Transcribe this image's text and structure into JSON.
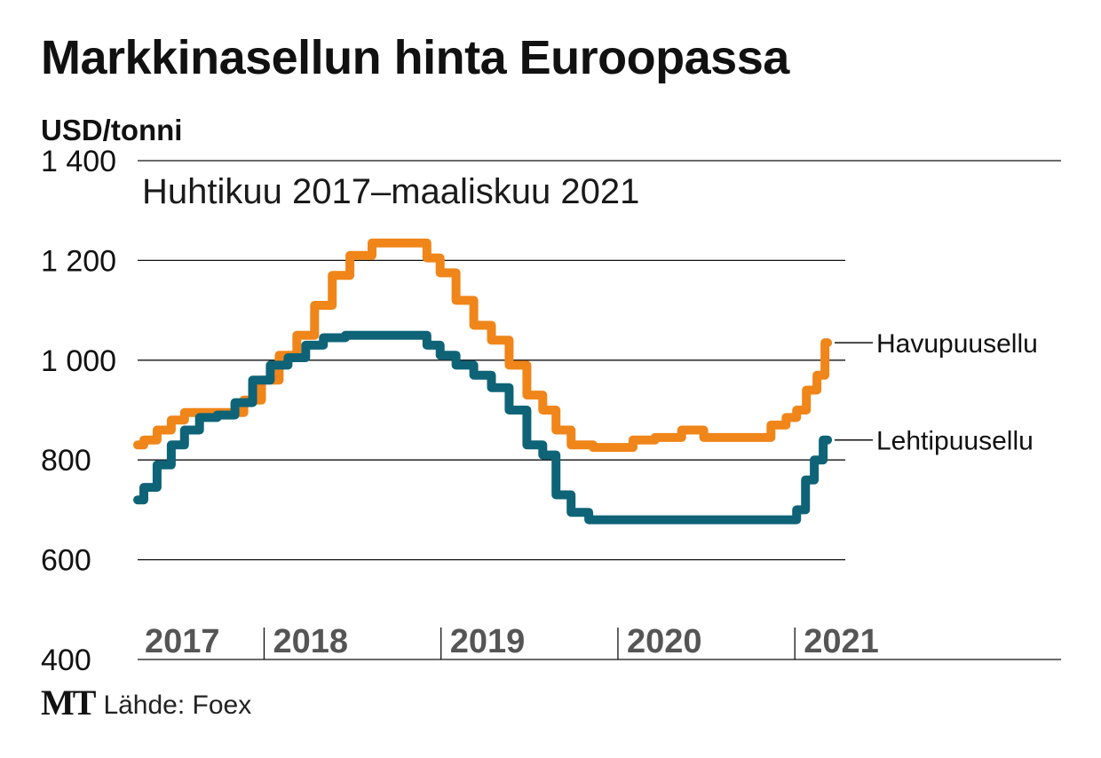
{
  "chart_data": {
    "type": "line",
    "title": "Markkinasellun hinta Euroopassa",
    "subtitle": "Huhtikuu 2017–maaliskuu 2021",
    "ylabel": "USD/tonni",
    "ylim": [
      400,
      1400
    ],
    "yticks": [
      400,
      600,
      800,
      1000,
      1200,
      1400
    ],
    "ytick_labels": [
      "400",
      "600",
      "800",
      "1 000",
      "1 200",
      "1 400"
    ],
    "xlim": [
      2017.25,
      2021.25
    ],
    "year_labels": [
      "2017",
      "2018",
      "2019",
      "2020",
      "2021"
    ],
    "year_label_positions": [
      2017.25,
      2018.0,
      2019.0,
      2020.0,
      2021.0
    ],
    "year_dividers": [
      2018.0,
      2019.0,
      2020.0,
      2021.0
    ],
    "grid": true,
    "colors": {
      "Havupuusellu": "#f08519",
      "Lehtipuusellu": "#0e6377"
    },
    "series": [
      {
        "name": "Havupuusellu",
        "x": [
          2017.25,
          2017.32,
          2017.4,
          2017.48,
          2017.55,
          2017.65,
          2017.8,
          2017.9,
          2018.0,
          2018.1,
          2018.2,
          2018.3,
          2018.4,
          2018.5,
          2018.65,
          2018.75,
          2018.85,
          2018.92,
          2019.0,
          2019.1,
          2019.2,
          2019.3,
          2019.4,
          2019.5,
          2019.58,
          2019.65,
          2019.75,
          2019.9,
          2020.0,
          2020.1,
          2020.25,
          2020.4,
          2020.5,
          2020.65,
          2020.78,
          2020.88,
          2020.95,
          2021.0,
          2021.06,
          2021.12,
          2021.15
        ],
        "y": [
          830,
          840,
          860,
          880,
          895,
          895,
          895,
          920,
          960,
          1010,
          1050,
          1110,
          1170,
          1210,
          1235,
          1235,
          1235,
          1205,
          1175,
          1120,
          1070,
          1040,
          990,
          930,
          900,
          860,
          830,
          825,
          825,
          840,
          845,
          860,
          845,
          845,
          845,
          870,
          885,
          900,
          940,
          970,
          1035
        ]
      },
      {
        "name": "Lehtipuusellu",
        "x": [
          2017.25,
          2017.32,
          2017.4,
          2017.48,
          2017.55,
          2017.65,
          2017.75,
          2017.85,
          2017.95,
          2018.05,
          2018.15,
          2018.25,
          2018.35,
          2018.5,
          2018.65,
          2018.75,
          2018.85,
          2018.92,
          2019.0,
          2019.1,
          2019.2,
          2019.3,
          2019.4,
          2019.5,
          2019.58,
          2019.65,
          2019.75,
          2019.85,
          2020.0,
          2020.25,
          2020.5,
          2020.75,
          2020.95,
          2021.0,
          2021.05,
          2021.1,
          2021.15
        ],
        "y": [
          720,
          745,
          790,
          830,
          860,
          885,
          890,
          915,
          960,
          990,
          1005,
          1030,
          1045,
          1050,
          1050,
          1050,
          1050,
          1030,
          1010,
          990,
          970,
          945,
          900,
          830,
          810,
          730,
          695,
          680,
          680,
          680,
          680,
          680,
          680,
          700,
          760,
          800,
          840
        ]
      }
    ]
  }
}
